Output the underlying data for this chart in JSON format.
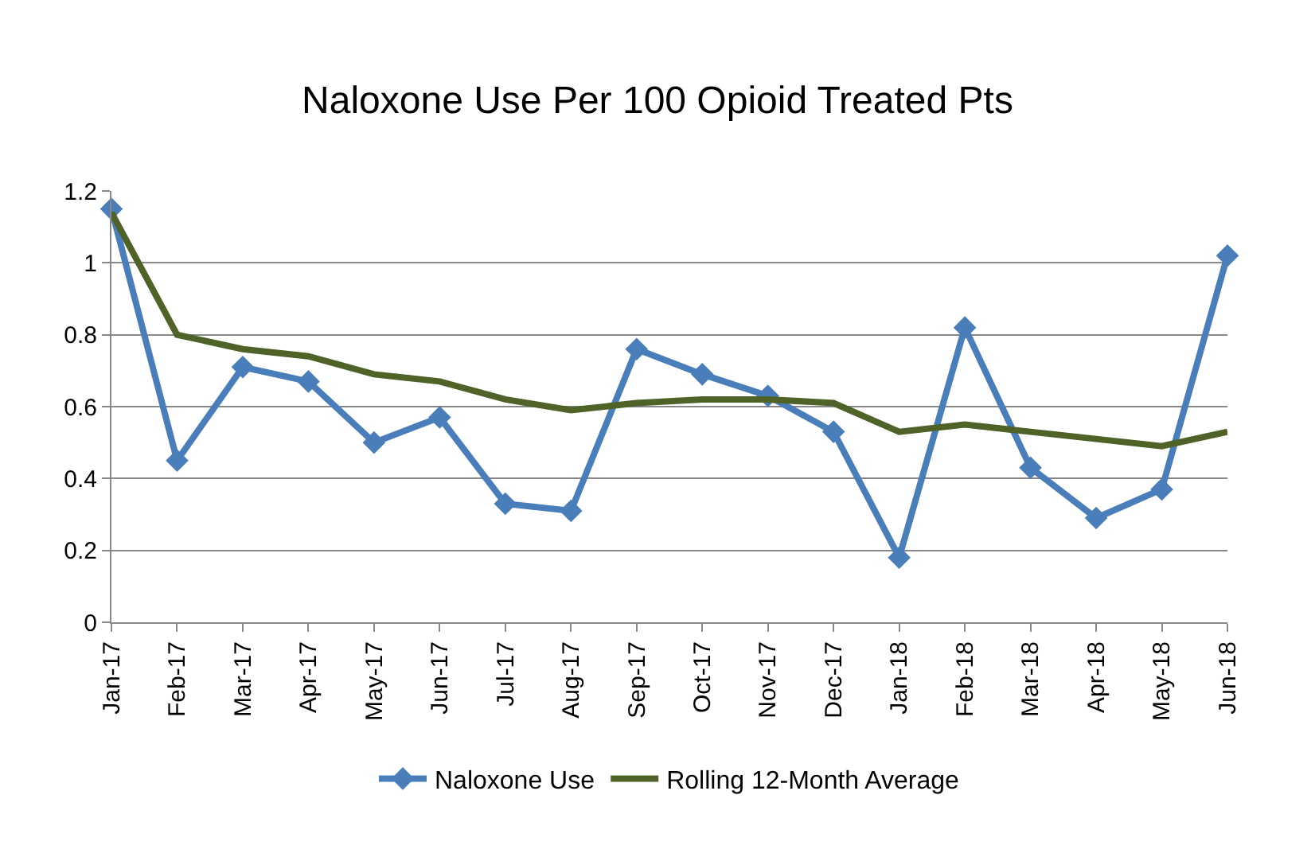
{
  "chart_data": {
    "type": "line",
    "title": "Naloxone Use Per 100 Opioid Treated Pts",
    "categories": [
      "Jan-17",
      "Feb-17",
      "Mar-17",
      "Apr-17",
      "May-17",
      "Jun-17",
      "Jul-17",
      "Aug-17",
      "Sep-17",
      "Oct-17",
      "Nov-17",
      "Dec-17",
      "Jan-18",
      "Feb-18",
      "Mar-18",
      "Apr-18",
      "May-18",
      "Jun-18"
    ],
    "series": [
      {
        "name": "Naloxone Use",
        "color": "#4a7ebb",
        "marker": "diamond",
        "values": [
          1.15,
          0.45,
          0.71,
          0.67,
          0.5,
          0.57,
          0.33,
          0.31,
          0.76,
          0.69,
          0.63,
          0.53,
          0.18,
          0.82,
          0.43,
          0.29,
          0.37,
          1.02
        ]
      },
      {
        "name": "Rolling 12-Month Average",
        "color": "#4f6228",
        "marker": "none",
        "values": [
          1.14,
          0.8,
          0.76,
          0.74,
          0.69,
          0.67,
          0.62,
          0.59,
          0.61,
          0.62,
          0.62,
          0.61,
          0.53,
          0.55,
          0.53,
          0.51,
          0.49,
          0.53
        ]
      }
    ],
    "ylim": [
      0,
      1.2
    ],
    "yticks": [
      0,
      0.2,
      0.4,
      0.6,
      0.8,
      1,
      1.2
    ],
    "grid": "y",
    "legend": "bottom",
    "line_style": "solid"
  }
}
